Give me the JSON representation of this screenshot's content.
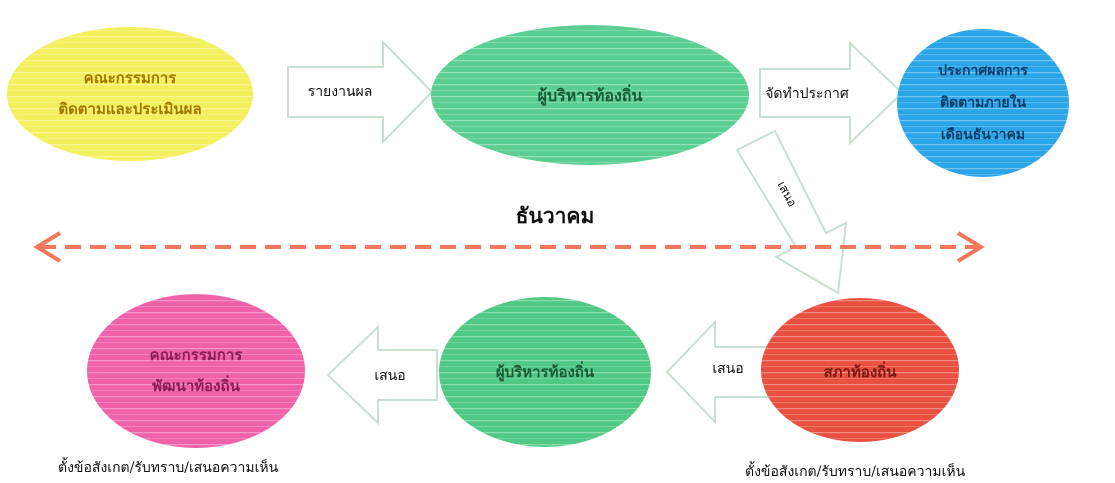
{
  "colors": {
    "yellow": "#f4ef5e",
    "green_top": "#5bcf92",
    "blue": "#2aa5e8",
    "pink": "#ef61a9",
    "green_bottom": "#4fc983",
    "red": "#e9503f",
    "dash_line": "#f4775c",
    "arrow_fill": "#ffffff",
    "arrow_stroke": "#c9dfcf"
  },
  "nodes": {
    "committee_eval": "คณะกรรมการ\nติดตามและประเมินผล",
    "executive_top": "ผู้บริหารท้องถิ่น",
    "announcement": "ประกาศผลการ\nติดตามภายใน\nเดือนธันวาคม",
    "committee_dev": "คณะกรรมการ\nพัฒนาท้องถิ่น",
    "executive_bottom": "ผู้บริหารท้องถิ่น",
    "council": "สภาท้องถิ่น"
  },
  "arrows": {
    "report": "รายงานผล",
    "announce": "จัดทำประกาศ",
    "down": "เสนอ",
    "propose_left": "เสนอ",
    "propose_right": "เสนอ"
  },
  "month": "ธันวาคม",
  "captions": {
    "left": "ตั้งข้อสังเกต/รับทราบ/เสนอความเห็น",
    "right": "ตั้งข้อสังเกต/รับทราบ/เสนอความเห็น"
  }
}
